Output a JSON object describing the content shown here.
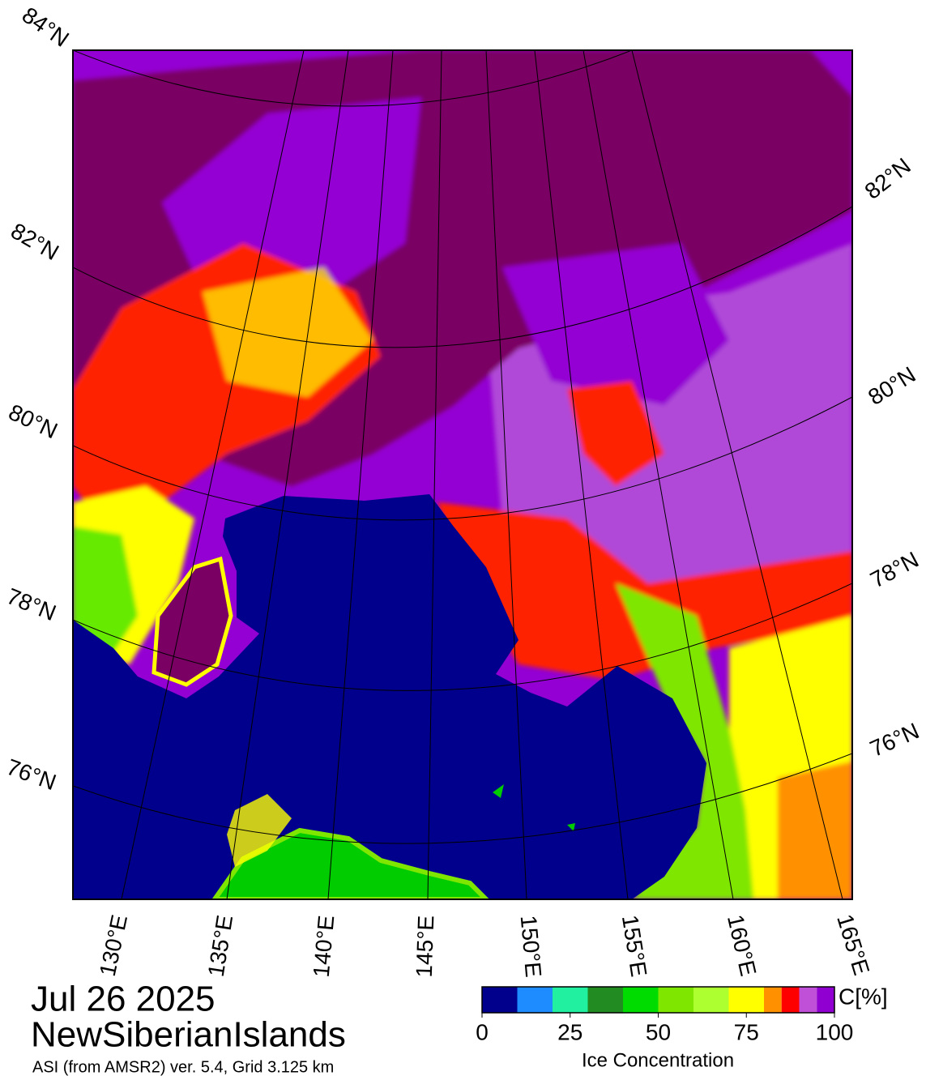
{
  "map": {
    "lat_labels_left": [
      "84°N",
      "82°N",
      "80°N",
      "78°N",
      "76°N"
    ],
    "lat_labels_right": [
      "82°N",
      "80°N",
      "78°N",
      "76°N"
    ],
    "lon_labels": [
      "130°E",
      "135°E",
      "140°E",
      "145°E",
      "150°E",
      "155°E",
      "160°E",
      "165°E"
    ]
  },
  "footer": {
    "date": "Jul 26 2025",
    "region": "NewSiberianIslands",
    "source": "ASI (from AMSR2) ver. 5.4,  Grid 3.125 km"
  },
  "legend": {
    "title": "Ice Concentration",
    "unit": "C[%]",
    "range": [
      0,
      100
    ],
    "ticks": [
      0,
      25,
      50,
      75,
      100
    ],
    "bounds": [
      0,
      10,
      20,
      30,
      40,
      50,
      60,
      70,
      80,
      85,
      90,
      95,
      100
    ],
    "colors": [
      "#00008c",
      "#1e8cff",
      "#20f0a0",
      "#228b22",
      "#00dc00",
      "#7fe600",
      "#adff2f",
      "#ffff00",
      "#ff9000",
      "#ff0000",
      "#c050d8",
      "#9000d0"
    ]
  }
}
